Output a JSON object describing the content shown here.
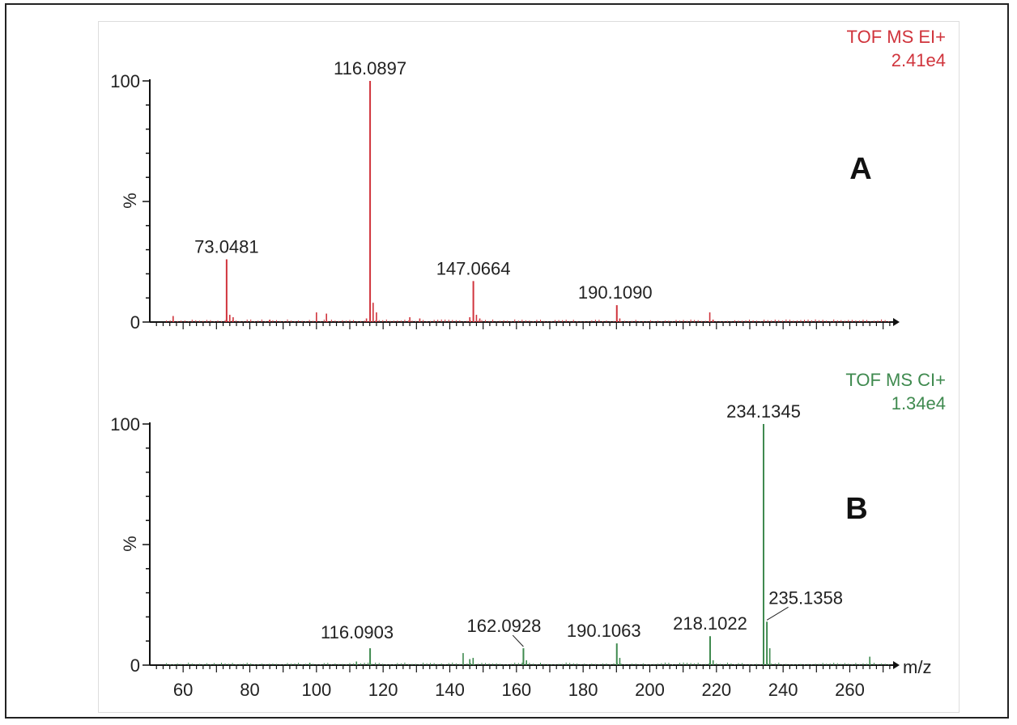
{
  "chart_data": [
    {
      "type": "bar",
      "panel_label": "A",
      "header_line1": "TOF MS EI+",
      "header_line2": "2.41e4",
      "color": "#d0343c",
      "ylabel": "%",
      "xlabel": "",
      "xlim": [
        50,
        273
      ],
      "ylim": [
        0,
        100
      ],
      "yticks": [
        "0",
        "100"
      ],
      "show_x_tick_labels": false,
      "grid": false,
      "labeled_peaks": [
        {
          "mz": 73.0481,
          "label": "73.0481",
          "intensity": 26
        },
        {
          "mz": 116.0897,
          "label": "116.0897",
          "intensity": 100
        },
        {
          "mz": 147.0664,
          "label": "147.0664",
          "intensity": 17
        },
        {
          "mz": 190.109,
          "label": "190.1090",
          "intensity": 7
        }
      ],
      "other_peaks": [
        {
          "mz": 57.0,
          "intensity": 2.5
        },
        {
          "mz": 74.0,
          "intensity": 3
        },
        {
          "mz": 75.0,
          "intensity": 2
        },
        {
          "mz": 86.0,
          "intensity": 1
        },
        {
          "mz": 100.0,
          "intensity": 4
        },
        {
          "mz": 103.0,
          "intensity": 3.5
        },
        {
          "mz": 115.0,
          "intensity": 1.5
        },
        {
          "mz": 117.0,
          "intensity": 8
        },
        {
          "mz": 118.0,
          "intensity": 4
        },
        {
          "mz": 128.0,
          "intensity": 2
        },
        {
          "mz": 131.0,
          "intensity": 1.5
        },
        {
          "mz": 146.0,
          "intensity": 2
        },
        {
          "mz": 148.0,
          "intensity": 3
        },
        {
          "mz": 149.0,
          "intensity": 1.5
        },
        {
          "mz": 191.0,
          "intensity": 1.5
        },
        {
          "mz": 218.0,
          "intensity": 4
        },
        {
          "mz": 219.0,
          "intensity": 1
        }
      ]
    },
    {
      "type": "bar",
      "panel_label": "B",
      "header_line1": "TOF MS CI+",
      "header_line2": "1.34e4",
      "color": "#3f8a4f",
      "ylabel": "%",
      "xlabel": "m/z",
      "xlim": [
        50,
        273
      ],
      "ylim": [
        0,
        100
      ],
      "yticks": [
        "0",
        "100"
      ],
      "xticks": [
        60,
        80,
        100,
        120,
        140,
        160,
        180,
        200,
        220,
        240,
        260
      ],
      "show_x_tick_labels": true,
      "grid": false,
      "labeled_peaks": [
        {
          "mz": 116.0903,
          "label": "116.0903",
          "intensity": 7
        },
        {
          "mz": 162.0928,
          "label": "162.0928",
          "intensity": 7
        },
        {
          "mz": 190.1063,
          "label": "190.1063",
          "intensity": 9
        },
        {
          "mz": 218.1022,
          "label": "218.1022",
          "intensity": 12
        },
        {
          "mz": 234.1345,
          "label": "234.1345",
          "intensity": 100
        },
        {
          "mz": 235.1358,
          "label": "235.1358",
          "intensity": 18
        }
      ],
      "other_peaks": [
        {
          "mz": 98.0,
          "intensity": 1
        },
        {
          "mz": 112.0,
          "intensity": 1.5
        },
        {
          "mz": 144.0,
          "intensity": 5
        },
        {
          "mz": 146.0,
          "intensity": 2.5
        },
        {
          "mz": 147.0,
          "intensity": 3
        },
        {
          "mz": 163.0,
          "intensity": 2
        },
        {
          "mz": 191.0,
          "intensity": 3
        },
        {
          "mz": 219.0,
          "intensity": 2
        },
        {
          "mz": 236.0,
          "intensity": 7
        },
        {
          "mz": 266.0,
          "intensity": 3.5
        }
      ]
    }
  ]
}
